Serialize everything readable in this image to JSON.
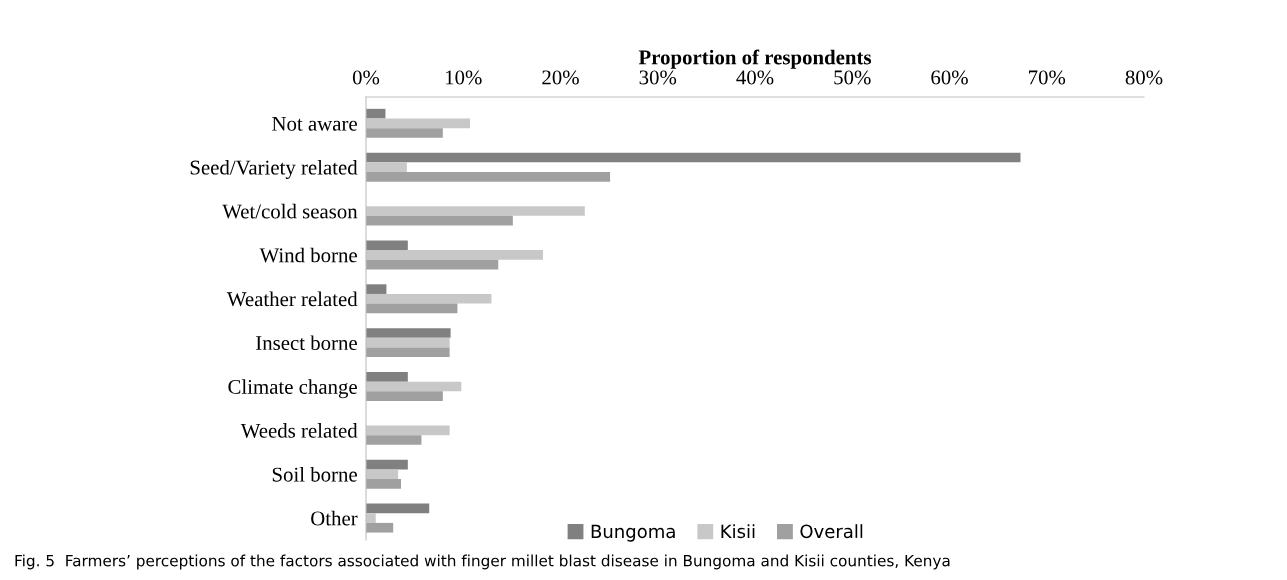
{
  "chart_data": {
    "type": "bar",
    "orientation": "horizontal",
    "xlabel": "Proportion of respondents",
    "categories": [
      "Not aware",
      "Seed/Variety related",
      "Wet/cold season",
      "Wind borne",
      "Weather related",
      "Insect borne",
      "Climate change",
      "Weeds related",
      "Soil borne",
      "Other"
    ],
    "series": [
      {
        "name": "Bungoma",
        "color": "#808080",
        "values": [
          2.0,
          67.3,
          0,
          4.3,
          2.1,
          8.7,
          4.3,
          0,
          4.3,
          6.5
        ]
      },
      {
        "name": "Kisii",
        "color": "#c8c8c8",
        "values": [
          10.7,
          4.2,
          22.5,
          18.2,
          12.9,
          8.6,
          9.8,
          8.6,
          3.3,
          1.0
        ]
      },
      {
        "name": "Overall",
        "color": "#a0a0a0",
        "values": [
          7.9,
          25.1,
          15.1,
          13.6,
          9.4,
          8.6,
          7.9,
          5.7,
          3.6,
          2.8
        ]
      }
    ],
    "xlim": [
      0,
      80
    ],
    "xticks": [
      {
        "value": 0,
        "label": "0%"
      },
      {
        "value": 10,
        "label": "10%"
      },
      {
        "value": 20,
        "label": "20%"
      },
      {
        "value": 30,
        "label": "30%"
      },
      {
        "value": 40,
        "label": "40%"
      },
      {
        "value": 50,
        "label": "50%"
      },
      {
        "value": 60,
        "label": "60%"
      },
      {
        "value": 70,
        "label": "70%"
      },
      {
        "value": 80,
        "label": "80%"
      }
    ],
    "grid": false,
    "legend": "bottom",
    "annotations": [
      "Fig. 5  Farmers’ perceptions of the factors associated with finger millet blast disease in Bungoma and Kisii counties, Kenya"
    ]
  }
}
